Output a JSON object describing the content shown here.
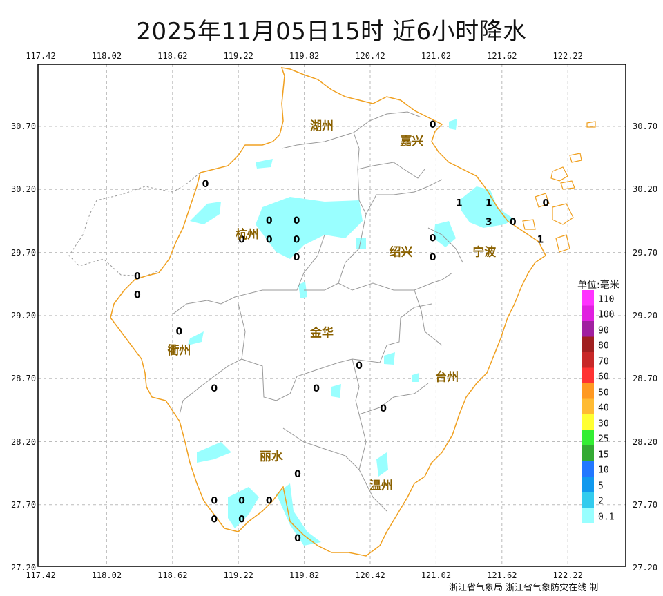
{
  "title": "2025年11月05日15时  近6小时降水",
  "x_ticks": [
    "117.42",
    "118.02",
    "118.62",
    "119.22",
    "119.82",
    "120.42",
    "121.02",
    "121.62",
    "122.22"
  ],
  "y_ticks": [
    "30.70",
    "30.20",
    "29.70",
    "29.20",
    "28.70",
    "28.20",
    "27.70",
    "27.20"
  ],
  "cities": [
    {
      "name": "湖州",
      "lon": 119.98,
      "lat": 30.7
    },
    {
      "name": "嘉兴",
      "lon": 120.8,
      "lat": 30.58
    },
    {
      "name": "杭州",
      "lon": 119.3,
      "lat": 29.84
    },
    {
      "name": "绍兴",
      "lon": 120.7,
      "lat": 29.7
    },
    {
      "name": "宁波",
      "lon": 121.46,
      "lat": 29.7
    },
    {
      "name": "金华",
      "lon": 119.98,
      "lat": 29.06
    },
    {
      "name": "衢州",
      "lon": 118.68,
      "lat": 28.92
    },
    {
      "name": "台州",
      "lon": 121.12,
      "lat": 28.71
    },
    {
      "name": "丽水",
      "lon": 119.52,
      "lat": 28.08
    },
    {
      "name": "温州",
      "lon": 120.52,
      "lat": 27.85
    }
  ],
  "stations": [
    {
      "v": "0",
      "lon": 120.99,
      "lat": 30.71
    },
    {
      "v": "0",
      "lon": 118.92,
      "lat": 30.24
    },
    {
      "v": "0",
      "lon": 119.5,
      "lat": 29.95
    },
    {
      "v": "0",
      "lon": 119.75,
      "lat": 29.95
    },
    {
      "v": "0",
      "lon": 119.5,
      "lat": 29.8
    },
    {
      "v": "0",
      "lon": 119.75,
      "lat": 29.8
    },
    {
      "v": "0",
      "lon": 119.25,
      "lat": 29.8
    },
    {
      "v": "0",
      "lon": 119.75,
      "lat": 29.66
    },
    {
      "v": "0",
      "lon": 120.99,
      "lat": 29.81
    },
    {
      "v": "0",
      "lon": 120.99,
      "lat": 29.66
    },
    {
      "v": "1",
      "lon": 121.23,
      "lat": 30.09
    },
    {
      "v": "1",
      "lon": 121.5,
      "lat": 30.09
    },
    {
      "v": "3",
      "lon": 121.5,
      "lat": 29.94
    },
    {
      "v": "0",
      "lon": 121.72,
      "lat": 29.94
    },
    {
      "v": "0",
      "lon": 122.02,
      "lat": 30.09
    },
    {
      "v": "1",
      "lon": 121.97,
      "lat": 29.8
    },
    {
      "v": "0",
      "lon": 118.3,
      "lat": 29.51
    },
    {
      "v": "0",
      "lon": 118.3,
      "lat": 29.36
    },
    {
      "v": "0",
      "lon": 118.68,
      "lat": 29.07
    },
    {
      "v": "0",
      "lon": 119.93,
      "lat": 28.62
    },
    {
      "v": "0",
      "lon": 120.32,
      "lat": 28.8
    },
    {
      "v": "0",
      "lon": 119.0,
      "lat": 28.62
    },
    {
      "v": "0",
      "lon": 120.54,
      "lat": 28.46
    },
    {
      "v": "0",
      "lon": 119.76,
      "lat": 27.94
    },
    {
      "v": "0",
      "lon": 119.0,
      "lat": 27.73
    },
    {
      "v": "0",
      "lon": 119.25,
      "lat": 27.73
    },
    {
      "v": "0",
      "lon": 119.5,
      "lat": 27.73
    },
    {
      "v": "0",
      "lon": 119.0,
      "lat": 27.58
    },
    {
      "v": "0",
      "lon": 119.25,
      "lat": 27.58
    },
    {
      "v": "0",
      "lon": 119.76,
      "lat": 27.43
    }
  ],
  "legend": {
    "title": "单位:毫米",
    "items": [
      {
        "label": "110",
        "color": "#ff33ff"
      },
      {
        "label": "100",
        "color": "#e020e0"
      },
      {
        "label": "90",
        "color": "#a020a0"
      },
      {
        "label": "80",
        "color": "#a02020"
      },
      {
        "label": "70",
        "color": "#c82828"
      },
      {
        "label": "60",
        "color": "#ff3333"
      },
      {
        "label": "50",
        "color": "#ff9922"
      },
      {
        "label": "40",
        "color": "#ffbb33"
      },
      {
        "label": "30",
        "color": "#ffff33"
      },
      {
        "label": "25",
        "color": "#33ee33"
      },
      {
        "label": "15",
        "color": "#33aa33"
      },
      {
        "label": "10",
        "color": "#2277ff"
      },
      {
        "label": "5",
        "color": "#1199ee"
      },
      {
        "label": "2",
        "color": "#33ccee"
      },
      {
        "label": "0.1",
        "color": "#99ffff"
      }
    ]
  },
  "credit": "浙江省气象局 浙江省气象防灾在线 制",
  "colors": {
    "boundary": "#f0a020",
    "county": "#999999",
    "rain": "#99ffff"
  }
}
